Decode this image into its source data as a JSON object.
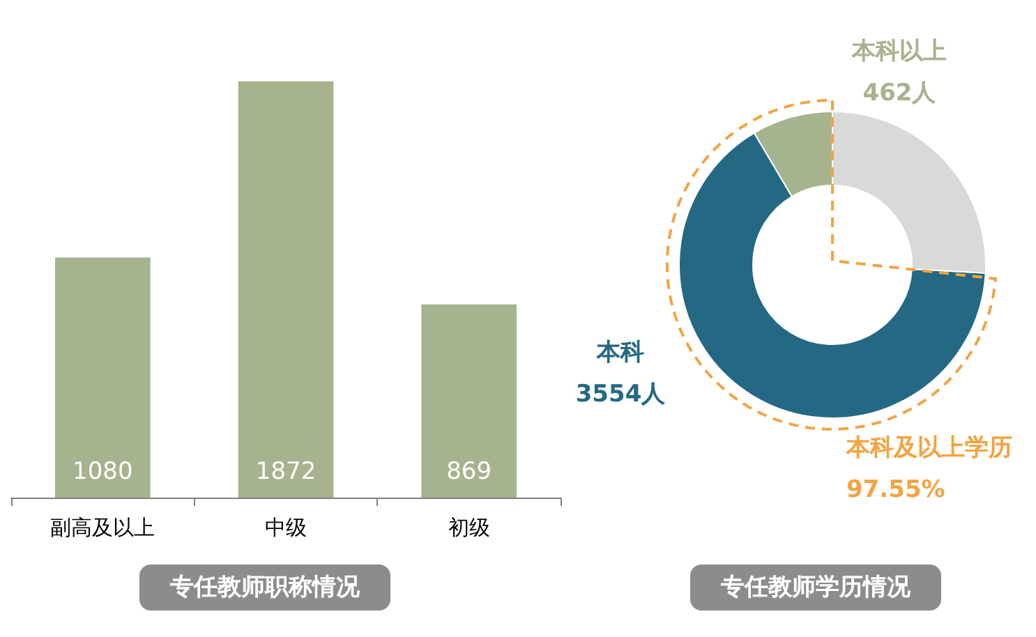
{
  "chart_data": [
    {
      "type": "bar",
      "title": "专任教师职称情况",
      "categories": [
        "副高及以上",
        "中级",
        "初级"
      ],
      "values": [
        1080,
        1872,
        869
      ],
      "color": "#a5b38e",
      "data_labels": true
    },
    {
      "type": "donut",
      "title": "专任教师学历情况",
      "categories": [
        "本科以上",
        "本科",
        null
      ],
      "values": [
        462,
        3554,
        1400
      ],
      "colors": [
        "#a5b38e",
        "#246884",
        "#d9d9d9"
      ],
      "value_labels": [
        "462人",
        "3554人",
        null
      ],
      "annotations": [
        "本科及以上学历",
        "97.55%"
      ]
    }
  ]
}
